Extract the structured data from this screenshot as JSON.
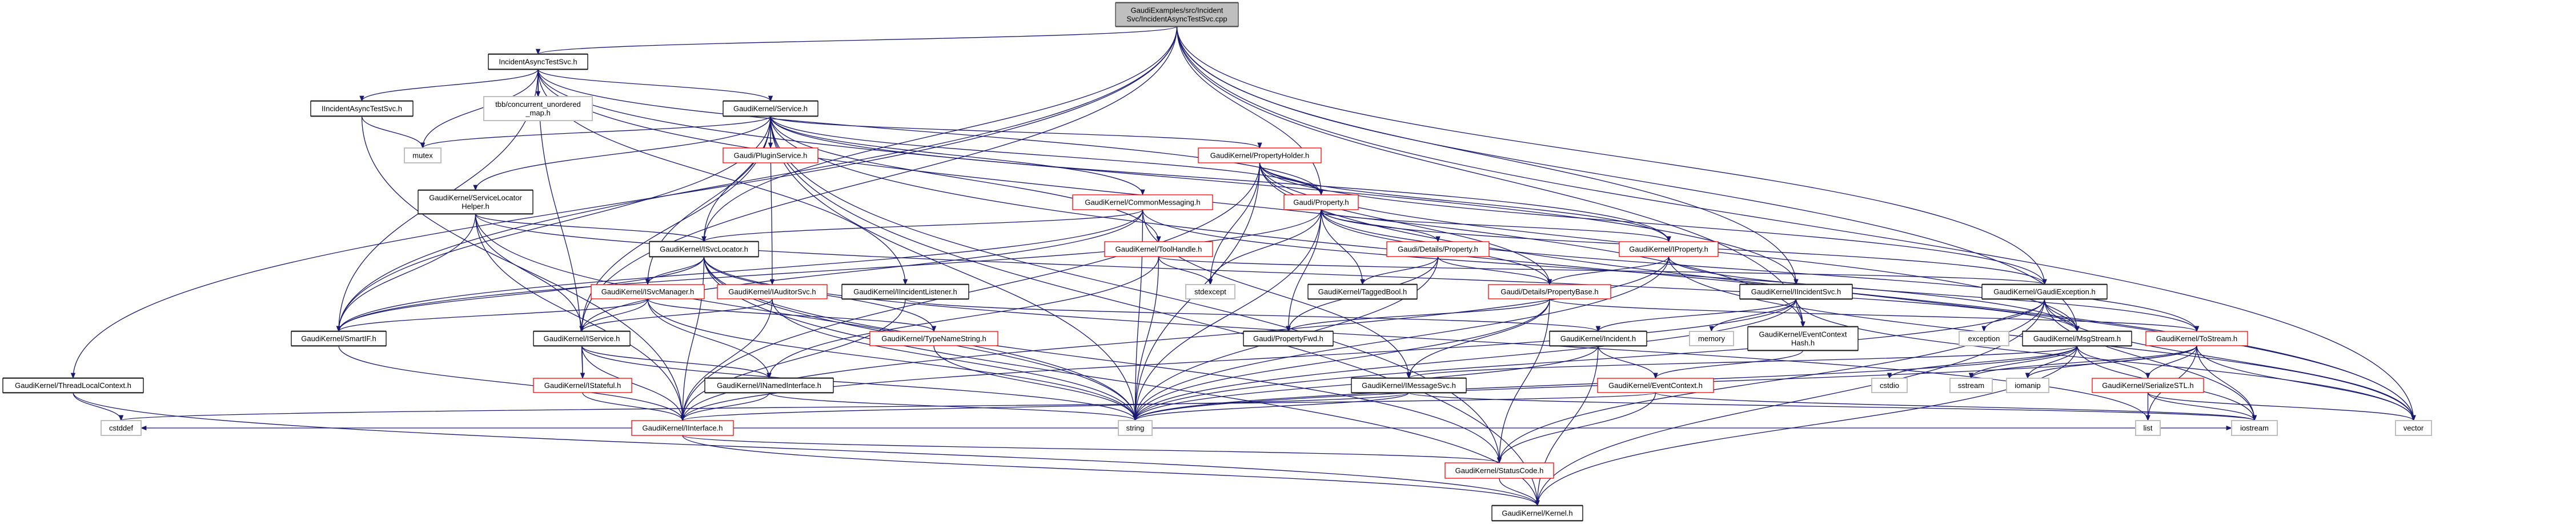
{
  "colors": {
    "edge": "#191970",
    "root_fill": "#bfbfbf",
    "root_border": "#404040",
    "documented_border": "#000000",
    "truncated_border": "#ff0000",
    "external_border": "#bfbfbf"
  },
  "nodes": [
    {
      "id": "main",
      "label": [
        "GaudiExamples/src/Incident",
        "Svc/IncidentAsyncTestSvc.cpp"
      ],
      "style": "root"
    },
    {
      "id": "IncidentAsyncTestSvc",
      "label": [
        "IncidentAsyncTestSvc.h"
      ],
      "style": "documented"
    },
    {
      "id": "IIncidentAsyncTestSvc",
      "label": [
        "IIncidentAsyncTestSvc.h"
      ],
      "style": "documented"
    },
    {
      "id": "tbb",
      "label": [
        "tbb/concurrent_unordered",
        "_map.h"
      ],
      "style": "external"
    },
    {
      "id": "Service",
      "label": [
        "GaudiKernel/Service.h"
      ],
      "style": "documented"
    },
    {
      "id": "mutex",
      "label": [
        "mutex"
      ],
      "style": "external"
    },
    {
      "id": "PluginService",
      "label": [
        "Gaudi/PluginService.h"
      ],
      "style": "truncated"
    },
    {
      "id": "PropertyHolder",
      "label": [
        "GaudiKernel/PropertyHolder.h"
      ],
      "style": "truncated"
    },
    {
      "id": "ServiceLocatorHelper",
      "label": [
        "GaudiKernel/ServiceLocator",
        "Helper.h"
      ],
      "style": "documented"
    },
    {
      "id": "CommonMessaging",
      "label": [
        "GaudiKernel/CommonMessaging.h"
      ],
      "style": "truncated"
    },
    {
      "id": "Property",
      "label": [
        "Gaudi/Property.h"
      ],
      "style": "truncated"
    },
    {
      "id": "ISvcLocator",
      "label": [
        "GaudiKernel/ISvcLocator.h"
      ],
      "style": "documented"
    },
    {
      "id": "ToolHandle",
      "label": [
        "GaudiKernel/ToolHandle.h"
      ],
      "style": "truncated"
    },
    {
      "id": "DetailsProperty",
      "label": [
        "Gaudi/Details/Property.h"
      ],
      "style": "truncated"
    },
    {
      "id": "IProperty",
      "label": [
        "GaudiKernel/IProperty.h"
      ],
      "style": "truncated"
    },
    {
      "id": "ISvcManager",
      "label": [
        "GaudiKernel/ISvcManager.h"
      ],
      "style": "truncated"
    },
    {
      "id": "IAuditorSvc",
      "label": [
        "GaudiKernel/IAuditorSvc.h"
      ],
      "style": "truncated"
    },
    {
      "id": "IIncidentListener",
      "label": [
        "GaudiKernel/IIncidentListener.h"
      ],
      "style": "documented"
    },
    {
      "id": "stdexcept",
      "label": [
        "stdexcept"
      ],
      "style": "external"
    },
    {
      "id": "TaggedBool",
      "label": [
        "GaudiKernel/TaggedBool.h"
      ],
      "style": "documented"
    },
    {
      "id": "PropertyBase",
      "label": [
        "Gaudi/Details/PropertyBase.h"
      ],
      "style": "truncated"
    },
    {
      "id": "IIncidentSvc",
      "label": [
        "GaudiKernel/IIncidentSvc.h"
      ],
      "style": "documented"
    },
    {
      "id": "GaudiException",
      "label": [
        "GaudiKernel/GaudiException.h"
      ],
      "style": "documented"
    },
    {
      "id": "SmartIF",
      "label": [
        "GaudiKernel/SmartIF.h"
      ],
      "style": "documented"
    },
    {
      "id": "IService",
      "label": [
        "GaudiKernel/IService.h"
      ],
      "style": "documented"
    },
    {
      "id": "TypeNameString",
      "label": [
        "GaudiKernel/TypeNameString.h"
      ],
      "style": "truncated"
    },
    {
      "id": "PropertyFwd",
      "label": [
        "Gaudi/PropertyFwd.h"
      ],
      "style": "documented"
    },
    {
      "id": "Incident",
      "label": [
        "GaudiKernel/Incident.h"
      ],
      "style": "documented"
    },
    {
      "id": "memory",
      "label": [
        "memory"
      ],
      "style": "external"
    },
    {
      "id": "EventContextHash",
      "label": [
        "GaudiKernel/EventContext",
        "Hash.h"
      ],
      "style": "documented"
    },
    {
      "id": "exception",
      "label": [
        "exception"
      ],
      "style": "external"
    },
    {
      "id": "MsgStream",
      "label": [
        "GaudiKernel/MsgStream.h"
      ],
      "style": "documented"
    },
    {
      "id": "ToStream",
      "label": [
        "GaudiKernel/ToStream.h"
      ],
      "style": "truncated"
    },
    {
      "id": "ThreadLocalContext",
      "label": [
        "GaudiKernel/ThreadLocalContext.h"
      ],
      "style": "documented"
    },
    {
      "id": "IStateful",
      "label": [
        "GaudiKernel/IStateful.h"
      ],
      "style": "truncated"
    },
    {
      "id": "INamedInterface",
      "label": [
        "GaudiKernel/INamedInterface.h"
      ],
      "style": "documented"
    },
    {
      "id": "IMessageSvc",
      "label": [
        "GaudiKernel/IMessageSvc.h"
      ],
      "style": "documented"
    },
    {
      "id": "EventContext",
      "label": [
        "GaudiKernel/EventContext.h"
      ],
      "style": "truncated"
    },
    {
      "id": "cstdio",
      "label": [
        "cstdio"
      ],
      "style": "external"
    },
    {
      "id": "sstream",
      "label": [
        "sstream"
      ],
      "style": "external"
    },
    {
      "id": "iomanip",
      "label": [
        "iomanip"
      ],
      "style": "external"
    },
    {
      "id": "SerializeSTL",
      "label": [
        "GaudiKernel/SerializeSTL.h"
      ],
      "style": "truncated"
    },
    {
      "id": "cstddef",
      "label": [
        "cstddef"
      ],
      "style": "external"
    },
    {
      "id": "IInterface",
      "label": [
        "GaudiKernel/IInterface.h"
      ],
      "style": "truncated"
    },
    {
      "id": "string",
      "label": [
        "string"
      ],
      "style": "external"
    },
    {
      "id": "list",
      "label": [
        "list"
      ],
      "style": "external"
    },
    {
      "id": "iostream",
      "label": [
        "iostream"
      ],
      "style": "external"
    },
    {
      "id": "vector",
      "label": [
        "vector"
      ],
      "style": "external"
    },
    {
      "id": "StatusCode",
      "label": [
        "GaudiKernel/StatusCode.h"
      ],
      "style": "truncated"
    },
    {
      "id": "Kernel",
      "label": [
        "GaudiKernel/Kernel.h"
      ],
      "style": "documented"
    }
  ],
  "edges": [
    [
      "main",
      "IncidentAsyncTestSvc"
    ],
    [
      "main",
      "ThreadLocalContext"
    ],
    [
      "main",
      "ISvcLocator"
    ],
    [
      "main",
      "SmartIF"
    ],
    [
      "main",
      "Property"
    ],
    [
      "main",
      "IIncidentSvc"
    ],
    [
      "main",
      "GaudiException"
    ],
    [
      "main",
      "MsgStream"
    ],
    [
      "main",
      "vector"
    ],
    [
      "main",
      "EventContextHash"
    ],
    [
      "main",
      "IService"
    ],
    [
      "IncidentAsyncTestSvc",
      "IIncidentAsyncTestSvc"
    ],
    [
      "IncidentAsyncTestSvc",
      "tbb"
    ],
    [
      "IncidentAsyncTestSvc",
      "mutex"
    ],
    [
      "IncidentAsyncTestSvc",
      "Service"
    ],
    [
      "IncidentAsyncTestSvc",
      "IIncidentListener"
    ],
    [
      "IncidentAsyncTestSvc",
      "IIncidentSvc"
    ],
    [
      "IncidentAsyncTestSvc",
      "Property"
    ],
    [
      "IncidentAsyncTestSvc",
      "SmartIF"
    ],
    [
      "IncidentAsyncTestSvc",
      "IStateful"
    ],
    [
      "IncidentAsyncTestSvc",
      "EventContextHash"
    ],
    [
      "IIncidentAsyncTestSvc",
      "mutex"
    ],
    [
      "IIncidentAsyncTestSvc",
      "IInterface"
    ],
    [
      "Service",
      "PluginService"
    ],
    [
      "Service",
      "ServiceLocatorHelper"
    ],
    [
      "Service",
      "ISvcLocator"
    ],
    [
      "Service",
      "PropertyHolder"
    ],
    [
      "Service",
      "CommonMessaging"
    ],
    [
      "Service",
      "Property"
    ],
    [
      "Service",
      "IProperty"
    ],
    [
      "Service",
      "ISvcManager"
    ],
    [
      "Service",
      "IAuditorSvc"
    ],
    [
      "Service",
      "IService"
    ],
    [
      "Service",
      "SmartIF"
    ],
    [
      "Service",
      "ToolHandle"
    ],
    [
      "Service",
      "mutex"
    ],
    [
      "Service",
      "vector"
    ],
    [
      "Service",
      "string"
    ],
    [
      "Service",
      "StatusCode"
    ],
    [
      "Service",
      "Kernel"
    ],
    [
      "ServiceLocatorHelper",
      "ISvcLocator"
    ],
    [
      "ServiceLocatorHelper",
      "IService"
    ],
    [
      "ServiceLocatorHelper",
      "SmartIF"
    ],
    [
      "ServiceLocatorHelper",
      "MsgStream"
    ],
    [
      "ServiceLocatorHelper",
      "IInterface"
    ],
    [
      "ServiceLocatorHelper",
      "string"
    ],
    [
      "PropertyHolder",
      "Property"
    ],
    [
      "PropertyHolder",
      "IProperty"
    ],
    [
      "PropertyHolder",
      "PropertyBase"
    ],
    [
      "PropertyHolder",
      "GaudiException"
    ],
    [
      "PropertyHolder",
      "IInterface"
    ],
    [
      "PropertyHolder",
      "string"
    ],
    [
      "PropertyHolder",
      "vector"
    ],
    [
      "PropertyHolder",
      "stdexcept"
    ],
    [
      "PropertyHolder",
      "MsgStream"
    ],
    [
      "CommonMessaging",
      "IMessageSvc"
    ],
    [
      "CommonMessaging",
      "ISvcLocator"
    ],
    [
      "CommonMessaging",
      "MsgStream"
    ],
    [
      "CommonMessaging",
      "SmartIF"
    ],
    [
      "CommonMessaging",
      "IService"
    ],
    [
      "CommonMessaging",
      "string"
    ],
    [
      "Property",
      "DetailsProperty"
    ],
    [
      "Property",
      "PropertyBase"
    ],
    [
      "Property",
      "PropertyFwd"
    ],
    [
      "Property",
      "TaggedBool"
    ],
    [
      "Property",
      "IProperty"
    ],
    [
      "Property",
      "SmartIF"
    ],
    [
      "Property",
      "stdexcept"
    ],
    [
      "Property",
      "string"
    ],
    [
      "Property",
      "GaudiException"
    ],
    [
      "Property",
      "ToStream"
    ],
    [
      "ToolHandle",
      "INamedInterface"
    ],
    [
      "ToolHandle",
      "string"
    ],
    [
      "ToolHandle",
      "stdexcept"
    ],
    [
      "ToolHandle",
      "GaudiException"
    ],
    [
      "DetailsProperty",
      "TaggedBool"
    ],
    [
      "DetailsProperty",
      "PropertyFwd"
    ],
    [
      "DetailsProperty",
      "PropertyBase"
    ],
    [
      "DetailsProperty",
      "string"
    ],
    [
      "IProperty",
      "IInterface"
    ],
    [
      "IProperty",
      "PropertyBase"
    ],
    [
      "IProperty",
      "string"
    ],
    [
      "IProperty",
      "vector"
    ],
    [
      "IProperty",
      "ToStream"
    ],
    [
      "ISvcLocator",
      "IInterface"
    ],
    [
      "ISvcLocator",
      "ISvcManager"
    ],
    [
      "ISvcLocator",
      "SmartIF"
    ],
    [
      "ISvcLocator",
      "TypeNameString"
    ],
    [
      "ISvcLocator",
      "StatusCode"
    ],
    [
      "ISvcLocator",
      "string"
    ],
    [
      "ISvcLocator",
      "list"
    ],
    [
      "ISvcLocator",
      "Kernel"
    ],
    [
      "ISvcManager",
      "IService"
    ],
    [
      "ISvcManager",
      "SmartIF"
    ],
    [
      "ISvcManager",
      "INamedInterface"
    ],
    [
      "ISvcManager",
      "TypeNameString"
    ],
    [
      "ISvcManager",
      "string"
    ],
    [
      "IAuditorSvc",
      "IService"
    ],
    [
      "IAuditorSvc",
      "IInterface"
    ],
    [
      "IAuditorSvc",
      "string"
    ],
    [
      "IIncidentListener",
      "IInterface"
    ],
    [
      "IIncidentListener",
      "Incident"
    ],
    [
      "PropertyBase",
      "PropertyFwd"
    ],
    [
      "PropertyBase",
      "StatusCode"
    ],
    [
      "PropertyBase",
      "ToStream"
    ],
    [
      "PropertyBase",
      "string"
    ],
    [
      "PropertyBase",
      "IMessageSvc"
    ],
    [
      "IIncidentSvc",
      "IInterface"
    ],
    [
      "IIncidentSvc",
      "Incident"
    ],
    [
      "IIncidentSvc",
      "EventContextHash"
    ],
    [
      "IIncidentSvc",
      "memory"
    ],
    [
      "IIncidentSvc",
      "string"
    ],
    [
      "IIncidentSvc",
      "vector"
    ],
    [
      "GaudiException",
      "StatusCode"
    ],
    [
      "GaudiException",
      "MsgStream"
    ],
    [
      "GaudiException",
      "exception"
    ],
    [
      "GaudiException",
      "string"
    ],
    [
      "GaudiException",
      "iostream"
    ],
    [
      "GaudiException",
      "Kernel"
    ],
    [
      "GaudiException",
      "vector"
    ],
    [
      "SmartIF",
      "IInterface"
    ],
    [
      "IService",
      "INamedInterface"
    ],
    [
      "IService",
      "IStateful"
    ],
    [
      "IService",
      "IInterface"
    ],
    [
      "IService",
      "string"
    ],
    [
      "TypeNameString",
      "string"
    ],
    [
      "Incident",
      "string"
    ],
    [
      "Incident",
      "EventContext"
    ],
    [
      "Incident",
      "Kernel"
    ],
    [
      "EventContextHash",
      "EventContext"
    ],
    [
      "MsgStream",
      "IMessageSvc"
    ],
    [
      "MsgStream",
      "SerializeSTL"
    ],
    [
      "MsgStream",
      "cstdio"
    ],
    [
      "MsgStream",
      "sstream"
    ],
    [
      "MsgStream",
      "iomanip"
    ],
    [
      "MsgStream",
      "string"
    ],
    [
      "MsgStream",
      "Kernel"
    ],
    [
      "MsgStream",
      "iostream"
    ],
    [
      "ToStream",
      "SerializeSTL"
    ],
    [
      "ToStream",
      "sstream"
    ],
    [
      "ToStream",
      "iomanip"
    ],
    [
      "ToStream",
      "list"
    ],
    [
      "ToStream",
      "vector"
    ],
    [
      "ToStream",
      "iostream"
    ],
    [
      "ToStream",
      "string"
    ],
    [
      "IStateful",
      "IInterface"
    ],
    [
      "INamedInterface",
      "IInterface"
    ],
    [
      "INamedInterface",
      "string"
    ],
    [
      "IMessageSvc",
      "IInterface"
    ],
    [
      "IMessageSvc",
      "string"
    ],
    [
      "IMessageSvc",
      "iostream"
    ],
    [
      "EventContext",
      "cstddef"
    ],
    [
      "EventContext",
      "iostream"
    ],
    [
      "EventContext",
      "StatusCode"
    ],
    [
      "SerializeSTL",
      "list"
    ],
    [
      "SerializeSTL",
      "vector"
    ],
    [
      "SerializeSTL",
      "iostream"
    ],
    [
      "IInterface",
      "StatusCode"
    ],
    [
      "IInterface",
      "Kernel"
    ],
    [
      "IInterface",
      "cstddef"
    ],
    [
      "IInterface",
      "iostream"
    ],
    [
      "StatusCode",
      "Kernel"
    ],
    [
      "ThreadLocalContext",
      "cstddef"
    ],
    [
      "ThreadLocalContext",
      "Kernel"
    ]
  ]
}
